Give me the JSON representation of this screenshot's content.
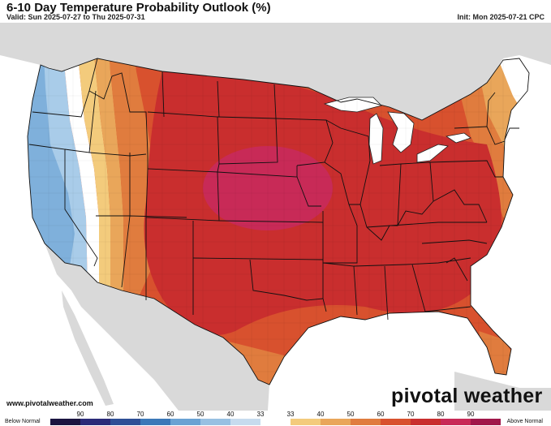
{
  "header": {
    "title": "6-10 Day Temperature Probability Outlook (%)",
    "valid": "Valid: Sun 2025-07-27 to Thu 2025-07-31",
    "init": "Init: Mon 2025-07-21 CPC"
  },
  "footer": {
    "source": "www.pivotalweather.com",
    "brand": "pivotal weather"
  },
  "legend": {
    "left_label": "Below Normal",
    "right_label": "Above Normal",
    "below_ticks": [
      "90",
      "80",
      "70",
      "60",
      "50",
      "40",
      "33"
    ],
    "above_ticks": [
      "33",
      "40",
      "50",
      "60",
      "70",
      "80",
      "90"
    ],
    "below_colors": [
      "#1a1440",
      "#2a2a78",
      "#2e4f96",
      "#3b78b8",
      "#6aa2d3",
      "#97c0e2",
      "#c6dbee"
    ],
    "above_colors": [
      "#f3cb7c",
      "#e9a65a",
      "#e07c3e",
      "#d8512e",
      "#c92e2e",
      "#c82a57",
      "#a0174a"
    ],
    "neutral_color": "#ffffff"
  },
  "map": {
    "region": "Contiguous United States",
    "colors": {
      "land_outside": "#d9d9d9",
      "water": "#ffffff",
      "below_40_50": "#7fb0db",
      "below_33_40": "#a9cce9",
      "above_33_40": "#f3cb7c",
      "above_40_50": "#e9a65a",
      "above_50_60": "#e07c3e",
      "above_60_70": "#d8512e",
      "above_70_80": "#c92e2e",
      "above_80_90": "#c82a57"
    }
  }
}
